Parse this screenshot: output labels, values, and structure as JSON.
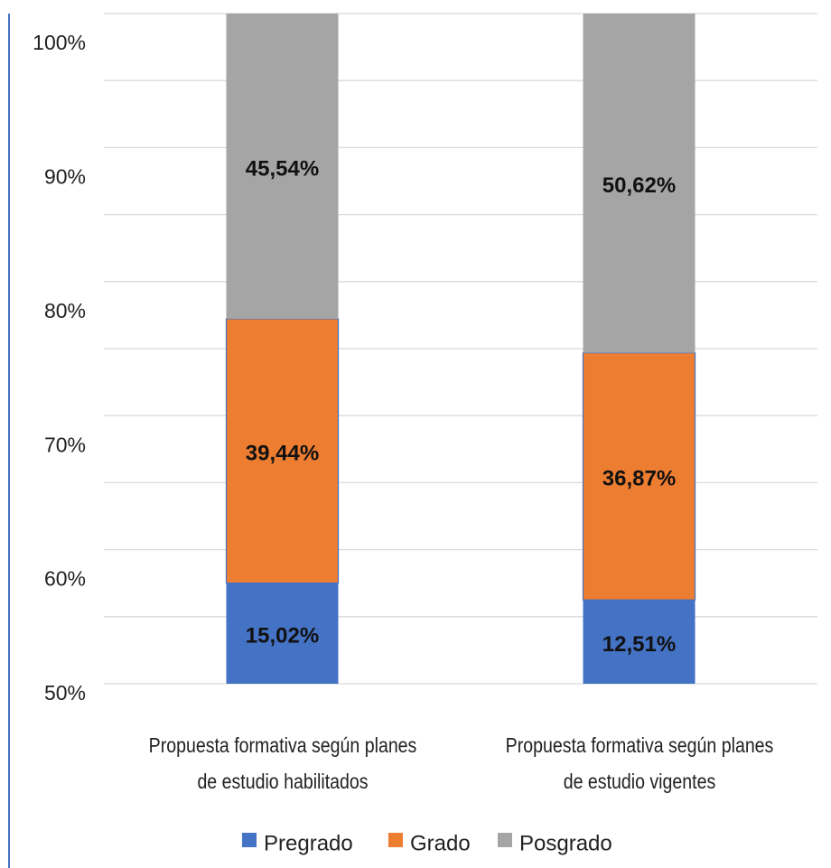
{
  "chart_data": {
    "type": "bar",
    "stacked": "percent",
    "categories": [
      "Propuesta formativa según planes de estudio habilitados",
      "Propuesta formativa según planes de estudio vigentes"
    ],
    "series": [
      {
        "name": "Pregrado",
        "color": "#4472c4",
        "values": [
          15.02,
          12.51
        ],
        "value_labels": [
          "15,02%",
          "12,51%"
        ]
      },
      {
        "name": "Grado",
        "color": "#ed7d31",
        "values": [
          39.44,
          36.87
        ],
        "value_labels": [
          "39,44%",
          "36,87%"
        ]
      },
      {
        "name": "Posgrado",
        "color": "#a5a5a5",
        "values": [
          45.54,
          50.62
        ],
        "value_labels": [
          "45,54%",
          "50,62%"
        ]
      }
    ],
    "ylim": [
      50,
      100
    ],
    "yticks": [
      {
        "value": 50,
        "label": "50%"
      },
      {
        "value": 60,
        "label": "60%"
      },
      {
        "value": 70,
        "label": "70%"
      },
      {
        "value": 80,
        "label": "80%"
      },
      {
        "value": 90,
        "label": "90%"
      },
      {
        "value": 100,
        "label": "100%"
      }
    ],
    "minor_yticks": [
      55,
      65,
      75,
      85,
      95
    ],
    "grid": true,
    "legend": "bottom"
  }
}
